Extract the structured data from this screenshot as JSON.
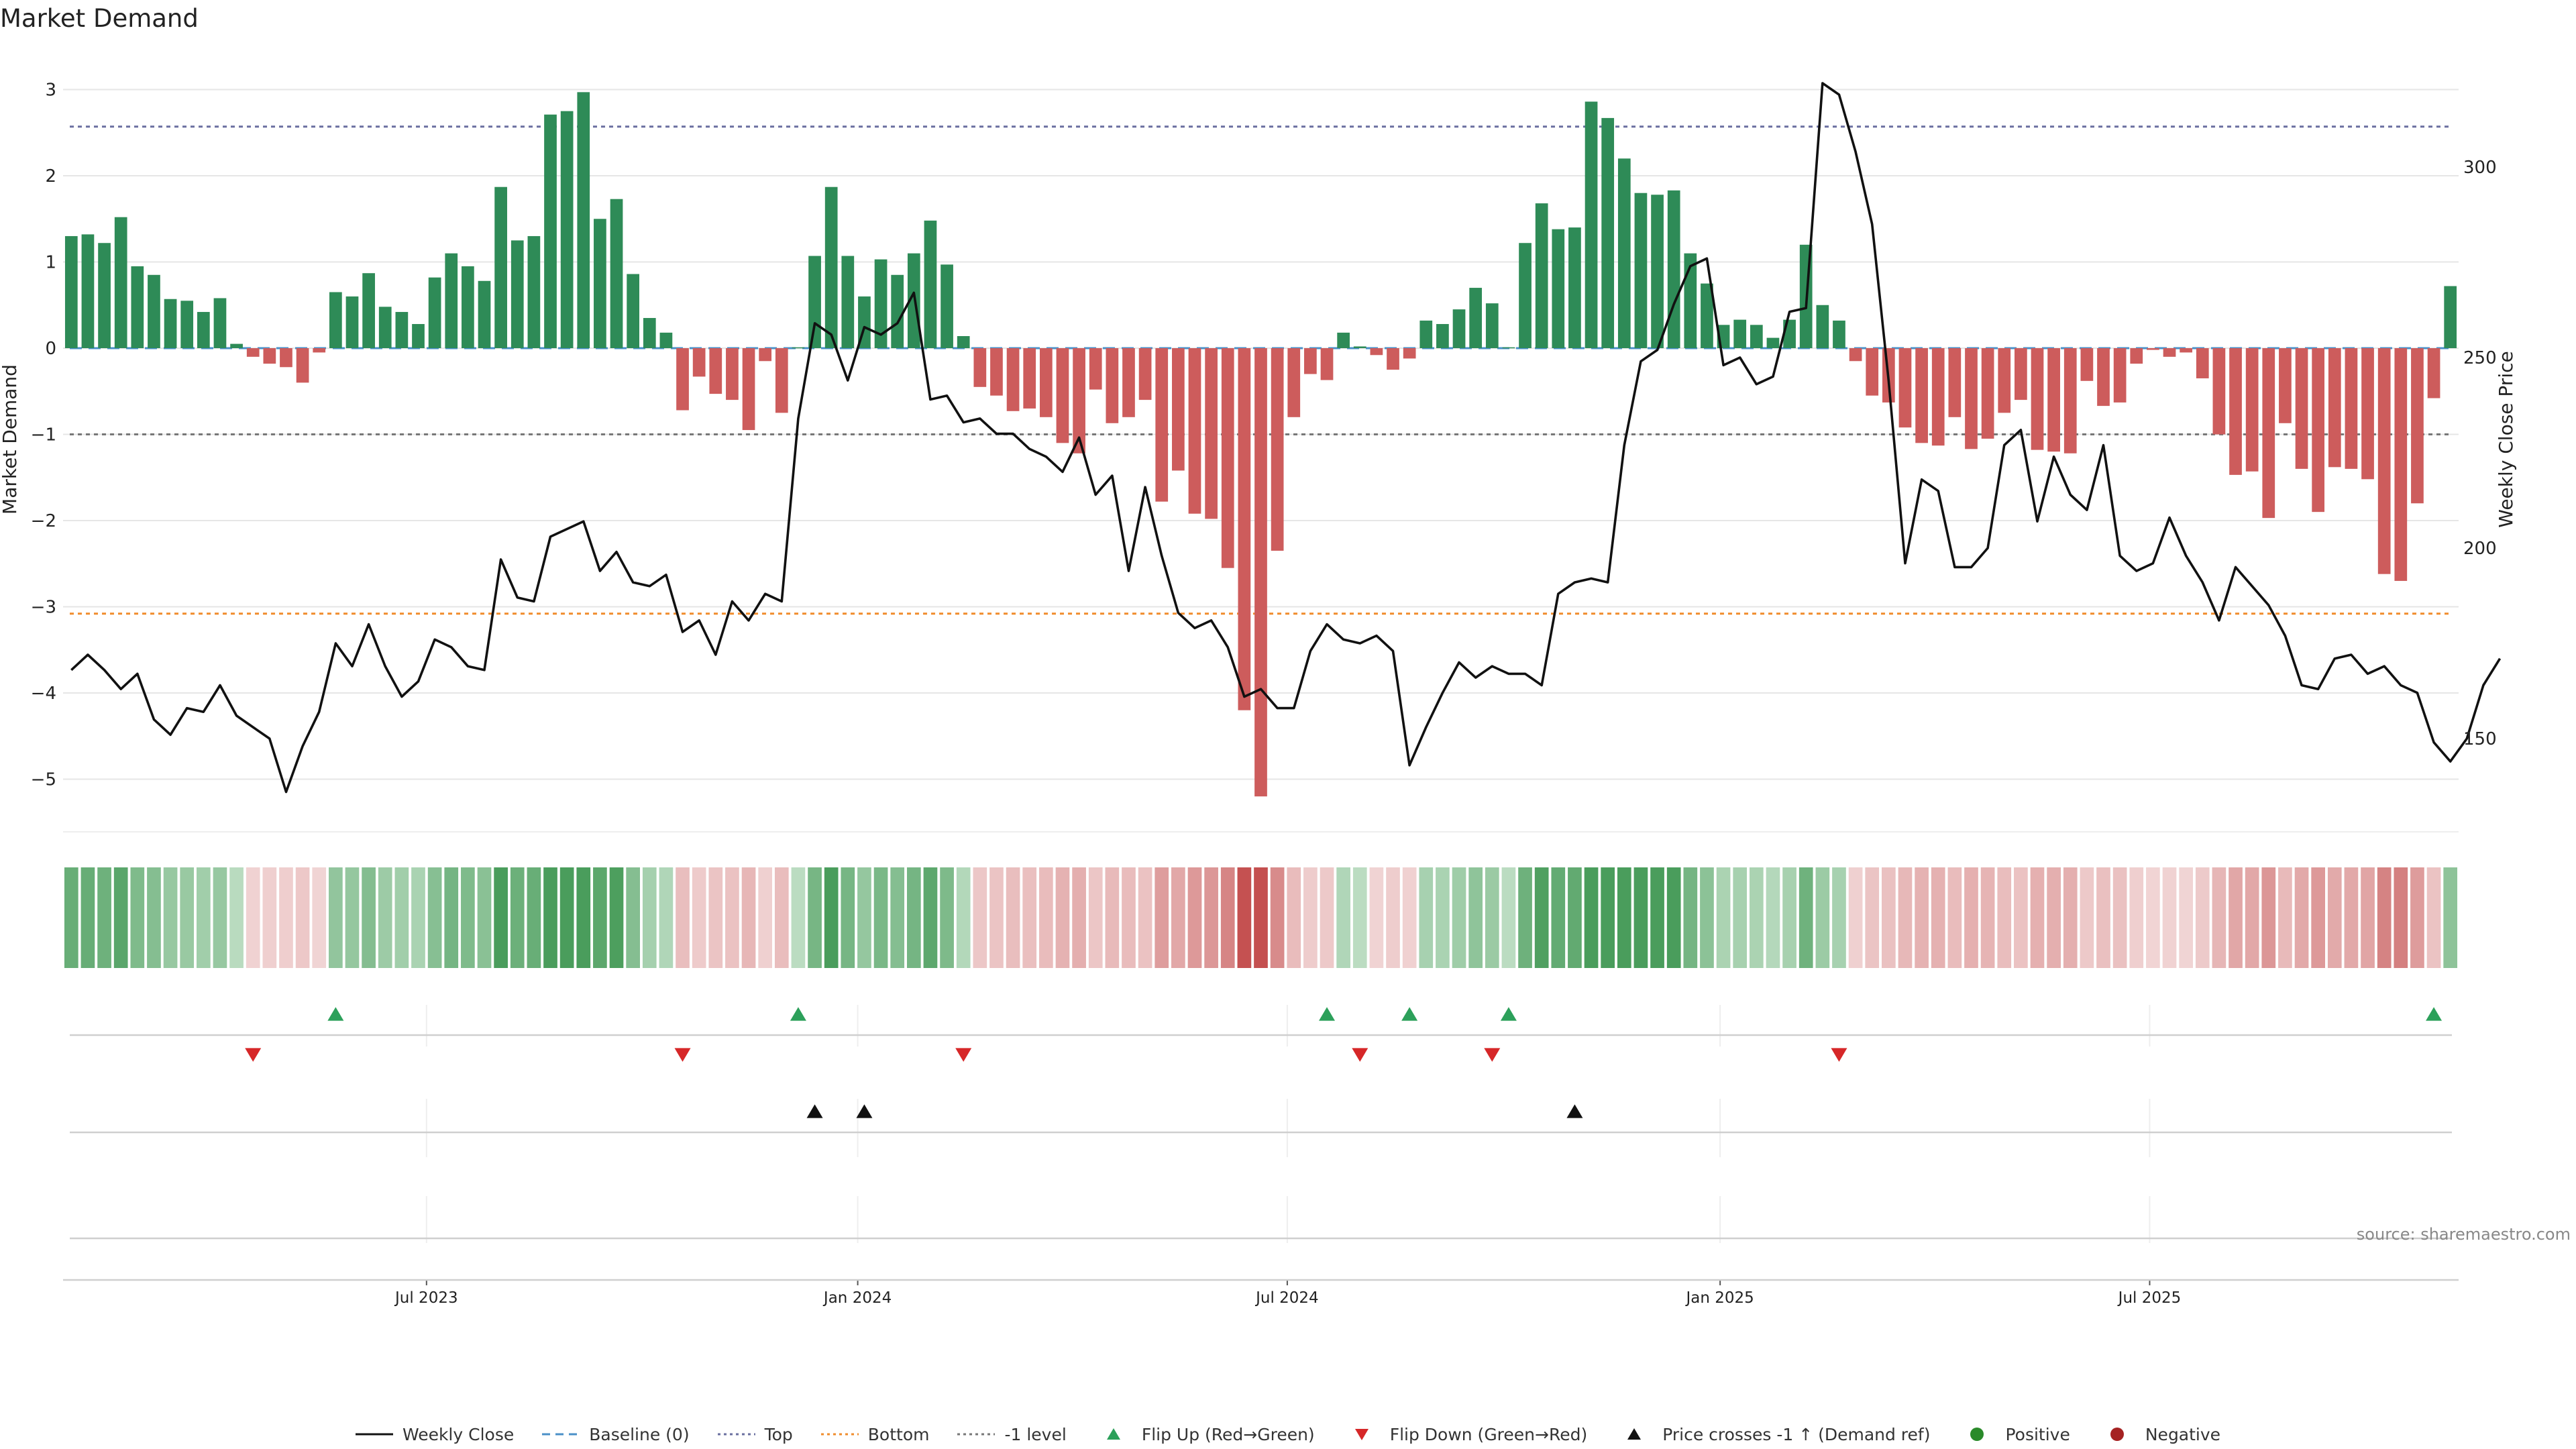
{
  "title": "Market Demand",
  "source": "source: sharemaestro.com",
  "chart_data": {
    "type": "bar",
    "title": "Market Demand",
    "ylabel": "Market Demand",
    "y2label": "Weekly Close Price",
    "ylim": [
      -5.6,
      3.05
    ],
    "y2lim": [
      130,
      330
    ],
    "yticks": [
      3,
      2,
      1,
      0,
      -1,
      -2,
      -3,
      -4,
      -5
    ],
    "y2ticks": [
      300,
      250,
      200,
      150
    ],
    "x_start": "2023-03-03",
    "x_step_days": 7,
    "xticks": [
      {
        "label": "Jul 2023",
        "week": 21.5
      },
      {
        "label": "Jan 2024",
        "week": 47.6
      },
      {
        "label": "Jul 2024",
        "week": 73.6
      },
      {
        "label": "Jan 2025",
        "week": 99.8
      },
      {
        "label": "Jul 2025",
        "week": 125.8
      }
    ],
    "reference_lines": [
      {
        "name": "Baseline (0)",
        "value": 0,
        "color": "#4a90c8",
        "style": "dashed"
      },
      {
        "name": "Top",
        "value": 2.57,
        "color": "#6a6fa0",
        "style": "dotted"
      },
      {
        "name": "Bottom",
        "value": -3.08,
        "color": "#f08c2c",
        "style": "dotted"
      },
      {
        "name": "-1 level",
        "value": -1,
        "color": "#777777",
        "style": "dotted"
      }
    ],
    "demand": [
      1.3,
      1.32,
      1.22,
      1.52,
      0.95,
      0.85,
      0.57,
      0.55,
      0.42,
      0.58,
      0.05,
      -0.1,
      -0.18,
      -0.22,
      -0.4,
      -0.05,
      0.65,
      0.6,
      0.87,
      0.48,
      0.42,
      0.28,
      0.82,
      1.1,
      0.95,
      0.78,
      1.87,
      1.25,
      1.3,
      2.71,
      2.75,
      2.97,
      1.5,
      1.73,
      0.86,
      0.35,
      0.18,
      -0.72,
      -0.33,
      -0.53,
      -0.6,
      -0.95,
      -0.15,
      -0.75,
      0.01,
      1.07,
      1.87,
      1.07,
      0.6,
      1.03,
      0.85,
      1.1,
      1.48,
      0.97,
      0.14,
      -0.45,
      -0.55,
      -0.73,
      -0.7,
      -0.8,
      -1.1,
      -1.22,
      -0.48,
      -0.87,
      -0.8,
      -0.6,
      -1.78,
      -1.42,
      -1.92,
      -1.98,
      -2.55,
      -4.2,
      -5.2,
      -2.35,
      -0.8,
      -0.3,
      -0.37,
      0.18,
      0.02,
      -0.08,
      -0.25,
      -0.12,
      0.32,
      0.28,
      0.45,
      0.7,
      0.52,
      0.01,
      1.22,
      1.68,
      1.38,
      1.4,
      2.86,
      2.67,
      2.2,
      1.8,
      1.78,
      1.83,
      1.1,
      0.75,
      0.27,
      0.33,
      0.27,
      0.12,
      0.33,
      1.2,
      0.5,
      0.32,
      -0.15,
      -0.55,
      -0.63,
      -0.92,
      -1.1,
      -1.13,
      -0.8,
      -1.17,
      -1.05,
      -0.75,
      -0.6,
      -1.18,
      -1.2,
      -1.22,
      -0.38,
      -0.67,
      -0.63,
      -0.18,
      -0.02,
      -0.1,
      -0.05,
      -0.35,
      -1.0,
      -1.47,
      -1.43,
      -1.97,
      -0.87,
      -1.4,
      -1.9,
      -1.38,
      -1.4,
      -1.52,
      -2.62,
      -2.7,
      -1.8,
      -0.58,
      0.72
    ],
    "close": [
      168,
      172,
      168,
      163,
      167,
      155,
      151,
      158,
      157,
      164,
      156,
      153,
      150,
      136,
      148,
      157,
      175,
      169,
      180,
      169,
      161,
      165,
      176,
      174,
      169,
      168,
      197,
      187,
      186,
      203,
      205,
      207,
      194,
      199,
      191,
      190,
      193,
      178,
      181,
      172,
      186,
      181,
      188,
      186,
      234,
      259,
      256,
      244,
      258,
      256,
      259,
      267,
      239,
      240,
      233,
      234,
      230,
      230,
      226,
      224,
      220,
      229,
      214,
      219,
      194,
      216,
      198,
      183,
      179,
      181,
      174,
      161,
      163,
      158,
      158,
      173,
      180,
      176,
      175,
      177,
      173,
      143,
      153,
      162,
      170,
      166,
      169,
      167,
      167,
      164,
      188,
      191,
      192,
      191,
      227,
      249,
      252,
      264,
      274,
      276,
      248,
      250,
      243,
      245,
      262,
      263,
      322,
      319,
      304,
      285,
      244,
      196,
      218,
      215,
      195,
      195,
      200,
      227,
      231,
      207,
      224,
      214,
      210,
      227,
      198,
      194,
      196,
      208,
      198,
      191,
      181,
      195,
      190,
      185,
      177,
      164,
      163,
      171,
      172,
      167,
      169,
      164,
      162,
      149,
      144,
      150,
      164,
      171
    ],
    "flip_up_weeks": [
      16,
      44,
      76,
      81,
      87,
      143
    ],
    "flip_down_weeks": [
      11,
      37,
      54,
      78,
      86,
      107
    ],
    "price_cross_weeks": [
      45,
      48,
      91
    ]
  },
  "legend": [
    {
      "label": "Weekly Close",
      "icon": "solid-line",
      "color": "#111111"
    },
    {
      "label": "Baseline (0)",
      "icon": "dashed-line",
      "color": "#4a90c8"
    },
    {
      "label": "Top",
      "icon": "dotted-line",
      "color": "#6a6fa0"
    },
    {
      "label": "Bottom",
      "icon": "dotted-line",
      "color": "#f08c2c"
    },
    {
      "label": "-1 level",
      "icon": "dotted-line",
      "color": "#777777"
    },
    {
      "label": "Flip Up (Red→Green)",
      "icon": "triangle-up",
      "color": "#2ca05a"
    },
    {
      "label": "Flip Down (Green→Red)",
      "icon": "triangle-down",
      "color": "#d62728"
    },
    {
      "label": "Price crosses -1 ↑ (Demand ref)",
      "icon": "triangle-up",
      "color": "#111111"
    },
    {
      "label": "Positive",
      "icon": "circle",
      "color": "#2a8a2a"
    },
    {
      "label": "Negative",
      "icon": "circle",
      "color": "#a52222"
    }
  ],
  "colors": {
    "positive_bar": "#2e8b57",
    "negative_bar": "#cd5c5c",
    "price_line": "#111111"
  }
}
